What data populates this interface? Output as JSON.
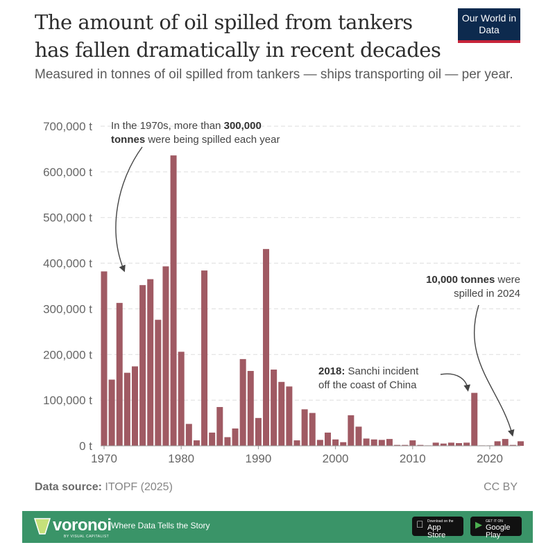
{
  "header": {
    "title": "The amount of oil spilled from tankers has fallen dramatically in recent decades",
    "subtitle": "Measured in tonnes of oil spilled from tankers — ships transporting oil — per year.",
    "logo": "Our World in Data"
  },
  "chart_data": {
    "type": "bar",
    "title": "The amount of oil spilled from tankers has fallen dramatically in recent decades",
    "ylabel": "",
    "xlabel": "",
    "unit": "t",
    "ylim": [
      0,
      700000
    ],
    "yticks": [
      "0 t",
      "100,000 t",
      "200,000 t",
      "300,000 t",
      "400,000 t",
      "500,000 t",
      "600,000 t",
      "700,000 t"
    ],
    "ytick_values": [
      0,
      100000,
      200000,
      300000,
      400000,
      500000,
      600000,
      700000
    ],
    "xticks": [
      "1970",
      "1980",
      "1990",
      "2000",
      "2010",
      "2020"
    ],
    "grid": "horizontal dashed",
    "color": "#a05a63",
    "x": [
      1970,
      1971,
      1972,
      1973,
      1974,
      1975,
      1976,
      1977,
      1978,
      1979,
      1980,
      1981,
      1982,
      1983,
      1984,
      1985,
      1986,
      1987,
      1988,
      1989,
      1990,
      1991,
      1992,
      1993,
      1994,
      1995,
      1996,
      1997,
      1998,
      1999,
      2000,
      2001,
      2002,
      2003,
      2004,
      2005,
      2006,
      2007,
      2008,
      2009,
      2010,
      2011,
      2012,
      2013,
      2014,
      2015,
      2016,
      2017,
      2018,
      2019,
      2020,
      2021,
      2022,
      2023,
      2024
    ],
    "values": [
      382000,
      145000,
      313000,
      160000,
      174000,
      352000,
      365000,
      276000,
      393000,
      636000,
      206000,
      48000,
      12000,
      384000,
      29000,
      85000,
      19000,
      38000,
      190000,
      164000,
      61000,
      431000,
      167000,
      140000,
      130000,
      12000,
      80000,
      72000,
      13000,
      29000,
      14000,
      8000,
      67000,
      42000,
      16000,
      14000,
      13000,
      15000,
      2000,
      2000,
      12000,
      2000,
      1000,
      7000,
      5000,
      7000,
      6000,
      7000,
      116000,
      1000,
      1000,
      10000,
      15000,
      2000,
      10000
    ],
    "annotations": [
      {
        "bold": "",
        "text_before": "In the 1970s, more than ",
        "bold_text": "300,000",
        "line2_bold": "tonnes",
        "line2": " were being spilled each year"
      },
      {
        "bold_text": "2018:",
        "text": " Sanchi incident",
        "line2": "off the coast of China"
      },
      {
        "bold_text": "10,000 tonnes",
        "text": " were",
        "line2": "spilled in 2024"
      }
    ]
  },
  "footer": {
    "source_label": "Data source:",
    "source": "ITOPF (2025)",
    "license": "CC BY",
    "brand": "voronoi",
    "brand_sub": "BY VISUAL CAPITALIST",
    "tagline": "Where Data Tells the Story",
    "app_store_small": "Download on the",
    "app_store": "App Store",
    "google_small": "GET IT ON",
    "google": "Google Play",
    "green": "#3a9468"
  }
}
